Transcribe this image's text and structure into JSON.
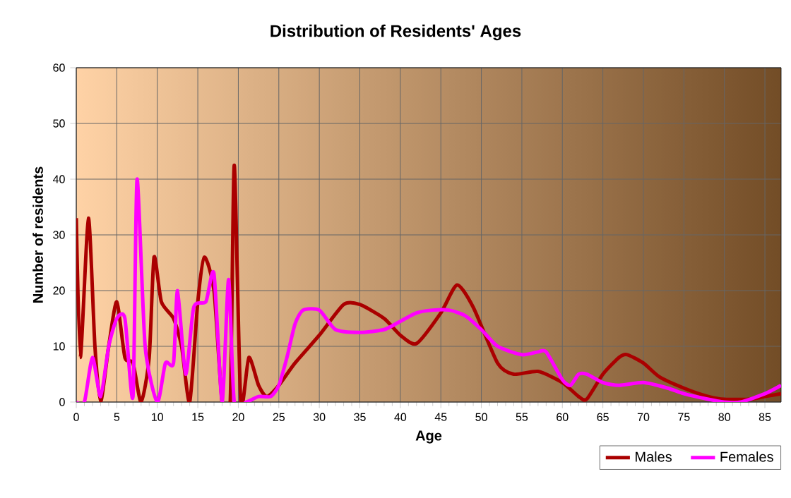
{
  "chart_data": {
    "type": "line",
    "title": "Distribution of Residents' Ages",
    "xlabel": "Age",
    "ylabel": "Number of residents",
    "xlim": [
      0,
      87
    ],
    "xticks": [
      0,
      5,
      10,
      15,
      20,
      25,
      30,
      35,
      40,
      45,
      50,
      55,
      60,
      65,
      70,
      75,
      80,
      85
    ],
    "ylim": [
      0,
      60
    ],
    "yticks": [
      0,
      10,
      20,
      30,
      40,
      50,
      60
    ],
    "grid": true,
    "legend": "bottom right",
    "marker": "none",
    "line_style": "solid",
    "series": [
      {
        "name": "Males",
        "color": "#aa0000",
        "x": [
          0,
          0.5,
          1.5,
          2.3,
          3,
          4,
          5,
          6,
          7,
          8,
          9,
          9.6,
          10.5,
          12,
          13,
          14,
          15,
          15.8,
          17,
          18,
          19,
          19.5,
          20.3,
          21.3,
          22.5,
          23.5,
          25,
          27,
          30,
          33,
          35,
          38,
          40,
          42,
          45,
          47,
          49,
          52,
          54,
          57,
          60,
          62,
          63,
          65,
          67,
          68,
          70,
          72,
          75,
          78,
          80,
          83,
          85,
          87
        ],
        "values": [
          33,
          8,
          33,
          10,
          0,
          10,
          18,
          8,
          7,
          0,
          8,
          26,
          18,
          15,
          10,
          0,
          18,
          26,
          20,
          0,
          0,
          42.5,
          0,
          8,
          3,
          1,
          3,
          7,
          12,
          17.5,
          17.5,
          15,
          12,
          10.5,
          16,
          21,
          17,
          7,
          5,
          5.5,
          3.5,
          1,
          0.5,
          5,
          8,
          8.5,
          7,
          4.5,
          2.5,
          1,
          0.5,
          0.5,
          1,
          1.5
        ]
      },
      {
        "name": "Females",
        "color": "#ff00ff",
        "x": [
          0,
          1,
          2,
          3,
          4,
          5,
          6,
          7,
          7.5,
          8.5,
          10,
          11,
          12,
          12.5,
          13.5,
          14.5,
          16,
          17,
          18,
          18.8,
          19.5,
          21,
          22.5,
          24,
          25,
          26,
          27,
          28,
          30,
          32,
          35,
          38,
          40,
          42,
          44,
          46,
          48,
          50,
          52,
          55,
          57,
          58,
          60,
          61,
          62,
          63,
          65,
          67,
          70,
          73,
          75,
          78,
          80,
          82,
          85,
          87
        ],
        "values": [
          0,
          0,
          8,
          1,
          10,
          15,
          15,
          1,
          40,
          10,
          0,
          7,
          7,
          20,
          5,
          17,
          18,
          23,
          0,
          22,
          0,
          0,
          1,
          1,
          3,
          8,
          14,
          16.5,
          16.5,
          13,
          12.5,
          13,
          14.5,
          16,
          16.5,
          16.5,
          15.5,
          13,
          10,
          8.5,
          9,
          9,
          4,
          3,
          5,
          5,
          3.5,
          3,
          3.5,
          2.5,
          1.5,
          0.5,
          0,
          0,
          1.5,
          3
        ]
      }
    ]
  }
}
